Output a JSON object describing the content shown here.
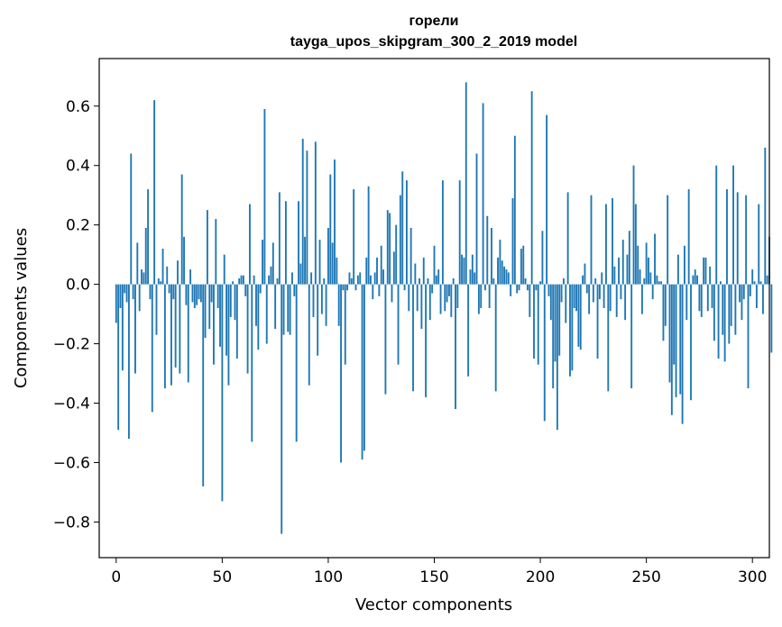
{
  "chart_data": {
    "type": "bar",
    "title": "горели",
    "subtitle": "tayga_upos_skipgram_300_2_2019 model",
    "xlabel": "Vector components",
    "ylabel": "Components values",
    "xlim": [
      -8,
      308
    ],
    "ylim": [
      -0.92,
      0.76
    ],
    "xticks": [
      0,
      50,
      100,
      150,
      200,
      250,
      300
    ],
    "yticks": [
      -0.8,
      -0.6,
      -0.4,
      -0.2,
      0.0,
      0.2,
      0.4,
      0.6
    ],
    "ytick_labels": [
      "−0.8",
      "−0.6",
      "−0.4",
      "−0.2",
      "0.0",
      "0.2",
      "0.4",
      "0.6"
    ],
    "bar_color": "#1f77b4",
    "values": [
      -0.13,
      -0.49,
      -0.08,
      -0.29,
      -0.03,
      -0.06,
      -0.52,
      0.44,
      -0.05,
      -0.3,
      0.14,
      -0.09,
      0.05,
      0.04,
      0.19,
      0.32,
      -0.05,
      -0.43,
      0.62,
      -0.17,
      0.02,
      0.01,
      0.12,
      -0.35,
      0.06,
      -0.03,
      -0.34,
      -0.05,
      -0.28,
      0.08,
      -0.3,
      0.37,
      0.16,
      -0.07,
      -0.33,
      0.05,
      -0.06,
      -0.08,
      -0.07,
      -0.05,
      -0.06,
      -0.68,
      -0.18,
      0.25,
      -0.15,
      -0.06,
      -0.27,
      0.22,
      -0.08,
      -0.21,
      -0.73,
      0.1,
      -0.24,
      -0.34,
      -0.11,
      0.01,
      -0.12,
      -0.25,
      0.02,
      0.03,
      0.03,
      -0.04,
      -0.3,
      0.27,
      -0.53,
      0.03,
      -0.14,
      -0.22,
      -0.03,
      0.15,
      0.59,
      -0.2,
      0.03,
      0.06,
      0.14,
      -0.15,
      0.02,
      0.31,
      -0.84,
      -0.17,
      0.28,
      -0.16,
      -0.17,
      0.04,
      -0.04,
      -0.53,
      0.28,
      0.07,
      0.49,
      0.16,
      0.45,
      -0.34,
      0.04,
      -0.11,
      0.48,
      -0.24,
      0.15,
      -0.1,
      0.02,
      -0.14,
      0.19,
      0.37,
      0.14,
      0.42,
      0.09,
      -0.14,
      -0.6,
      -0.02,
      -0.27,
      -0.02,
      0.04,
      0.02,
      0.32,
      -0.02,
      0.03,
      0.04,
      -0.59,
      -0.56,
      0.09,
      0.33,
      0.03,
      -0.05,
      0.04,
      0.09,
      -0.04,
      0.13,
      0.05,
      -0.37,
      0.25,
      0.24,
      -0.06,
      0.11,
      0.2,
      -0.27,
      0.3,
      0.38,
      -0.02,
      0.35,
      -0.09,
      0.19,
      -0.36,
      0.07,
      -0.09,
      0.02,
      -0.15,
      0.09,
      -0.38,
      0.02,
      -0.12,
      -0.03,
      0.13,
      0.03,
      0.05,
      -0.1,
      0.35,
      -0.09,
      -0.06,
      -0.04,
      -0.11,
      0.02,
      -0.42,
      -0.08,
      0.35,
      0.1,
      0.09,
      0.68,
      -0.31,
      0.05,
      0.1,
      0.04,
      0.44,
      -0.1,
      -0.08,
      0.61,
      -0.02,
      0.23,
      -0.08,
      0.19,
      0.02,
      -0.36,
      0.09,
      0.15,
      0.08,
      0.06,
      0.05,
      0.04,
      -0.04,
      0.29,
      0.5,
      -0.03,
      -0.02,
      0.12,
      0.13,
      0.02,
      -0.02,
      -0.11,
      0.65,
      -0.25,
      -0.02,
      -0.27,
      0.01,
      0.18,
      -0.46,
      0.57,
      -0.04,
      -0.12,
      -0.35,
      -0.26,
      -0.49,
      -0.24,
      -0.06,
      0.02,
      -0.13,
      0.31,
      -0.31,
      -0.29,
      -0.08,
      -0.09,
      -0.21,
      -0.22,
      0.03,
      0.07,
      -0.03,
      -0.1,
      0.3,
      -0.06,
      0.02,
      -0.25,
      -0.05,
      0.04,
      -0.08,
      0.27,
      -0.36,
      -0.09,
      0.29,
      0.06,
      -0.11,
      0.09,
      -0.05,
      0.15,
      -0.12,
      0.1,
      0.18,
      -0.35,
      0.4,
      0.27,
      0.13,
      0.05,
      -0.1,
      0.02,
      0.14,
      0.09,
      0.04,
      -0.05,
      0.17,
      0.03,
      0.01,
      0.01,
      -0.19,
      -0.14,
      0.3,
      -0.33,
      -0.44,
      -0.27,
      -0.38,
      0.1,
      -0.37,
      -0.47,
      0.13,
      -0.12,
      0.32,
      -0.39,
      0.03,
      0.05,
      0.03,
      -0.09,
      -0.11,
      0.09,
      0.09,
      -0.09,
      0.06,
      -0.08,
      -0.19,
      0.4,
      -0.25,
      0.01,
      -0.17,
      -0.26,
      0.32,
      -0.2,
      -0.14,
      0.4,
      -0.17,
      0.31,
      -0.06,
      -0.12,
      -0.05,
      0.3,
      -0.35,
      -0.04,
      0.05,
      0.01,
      -0.08,
      0.27,
      0.01,
      -0.1,
      0.46,
      0.03,
      0.16,
      -0.23
    ]
  }
}
